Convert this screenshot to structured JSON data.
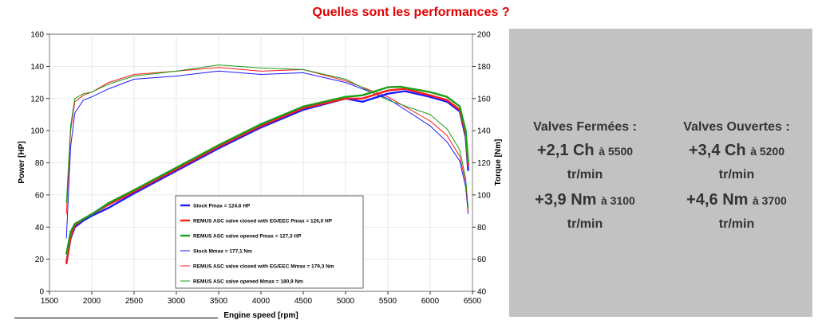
{
  "title": "Quelles sont les performances ?",
  "stats": {
    "closed": {
      "title": "Valves Fermées :",
      "power_gain": "+2,1 Ch",
      "power_at": "à 5500",
      "power_unit": "tr/min",
      "torque_gain": "+3,9 Nm",
      "torque_at": "à 3100",
      "torque_unit": "tr/min"
    },
    "open": {
      "title": "Valves Ouvertes :",
      "power_gain": "+3,4 Ch",
      "power_at": "à 5200",
      "power_unit": "tr/min",
      "torque_gain": "+4,6 Nm",
      "torque_at": "à 3700",
      "torque_unit": "tr/min"
    }
  },
  "colors": {
    "stock": "#1a1aff",
    "closed": "#ff1a1a",
    "open": "#1a9e1a",
    "title": "#e00000",
    "panel": "#c2c2c2"
  },
  "chart_data": {
    "type": "line",
    "xlabel": "Engine speed [rpm]",
    "ylabel": "Power [HP]",
    "y2label": "Torque [Nm]",
    "xlim": [
      1500,
      6500
    ],
    "ylim": [
      0,
      160
    ],
    "y2lim": [
      40,
      200
    ],
    "xticks": [
      1500,
      2000,
      2500,
      3000,
      3500,
      4000,
      4500,
      5000,
      5500,
      6000,
      6500
    ],
    "yticks": [
      0,
      20,
      40,
      60,
      80,
      100,
      120,
      140,
      160
    ],
    "y2ticks": [
      40,
      60,
      80,
      100,
      120,
      140,
      160,
      180,
      200
    ],
    "grid": true,
    "legend_position": "bottom-center",
    "series": [
      {
        "name": "Stock Pmax = 124,6 HP",
        "axis": "left",
        "color_key": "stock",
        "width": 2.4,
        "points": [
          [
            1700,
            18
          ],
          [
            1750,
            33
          ],
          [
            1800,
            40
          ],
          [
            1900,
            44
          ],
          [
            2000,
            47
          ],
          [
            2200,
            52
          ],
          [
            2500,
            61
          ],
          [
            3000,
            75
          ],
          [
            3500,
            89
          ],
          [
            4000,
            102
          ],
          [
            4500,
            113
          ],
          [
            5000,
            120
          ],
          [
            5200,
            118
          ],
          [
            5500,
            123
          ],
          [
            5700,
            124.6
          ],
          [
            6000,
            121
          ],
          [
            6200,
            118
          ],
          [
            6350,
            112
          ],
          [
            6420,
            96
          ],
          [
            6450,
            75
          ]
        ]
      },
      {
        "name": "REMUS ASC valve closed with EG/EEC Pmax =  126,0 HP",
        "axis": "left",
        "color_key": "closed",
        "width": 2.4,
        "points": [
          [
            1700,
            17
          ],
          [
            1750,
            34
          ],
          [
            1800,
            41
          ],
          [
            1900,
            45
          ],
          [
            2000,
            48
          ],
          [
            2200,
            54
          ],
          [
            2500,
            62
          ],
          [
            3000,
            76
          ],
          [
            3500,
            90
          ],
          [
            4000,
            103
          ],
          [
            4500,
            114
          ],
          [
            5000,
            120
          ],
          [
            5200,
            120
          ],
          [
            5500,
            125
          ],
          [
            5700,
            126
          ],
          [
            6000,
            122
          ],
          [
            6200,
            119
          ],
          [
            6350,
            113
          ],
          [
            6420,
            98
          ],
          [
            6450,
            78
          ]
        ]
      },
      {
        "name": "REMUS ASC valve opened Pmax = 127,3 HP",
        "axis": "left",
        "color_key": "open",
        "width": 2.4,
        "points": [
          [
            1700,
            23
          ],
          [
            1750,
            37
          ],
          [
            1800,
            42
          ],
          [
            1900,
            45
          ],
          [
            2000,
            48
          ],
          [
            2200,
            55
          ],
          [
            2500,
            63
          ],
          [
            3000,
            77
          ],
          [
            3500,
            91
          ],
          [
            4000,
            104
          ],
          [
            4500,
            115
          ],
          [
            5000,
            121
          ],
          [
            5200,
            122
          ],
          [
            5500,
            127
          ],
          [
            5650,
            127.3
          ],
          [
            6000,
            124
          ],
          [
            6200,
            121
          ],
          [
            6350,
            115
          ],
          [
            6420,
            100
          ],
          [
            6450,
            80
          ]
        ]
      },
      {
        "name": "Stock Mmax = 177,1 Nm",
        "axis": "right",
        "color_key": "stock",
        "width": 1,
        "points": [
          [
            1700,
            73
          ],
          [
            1750,
            130
          ],
          [
            1800,
            151
          ],
          [
            1900,
            159
          ],
          [
            2000,
            161
          ],
          [
            2200,
            166
          ],
          [
            2500,
            172
          ],
          [
            3000,
            174
          ],
          [
            3500,
            177.1
          ],
          [
            4000,
            175
          ],
          [
            4500,
            176
          ],
          [
            5000,
            170
          ],
          [
            5500,
            160
          ],
          [
            6000,
            143
          ],
          [
            6200,
            133
          ],
          [
            6350,
            121
          ],
          [
            6420,
            105
          ],
          [
            6450,
            88
          ]
        ]
      },
      {
        "name": "REMUS ASC valve closed with EG/EEC Mmax = 179,3 Nm",
        "axis": "right",
        "color_key": "closed",
        "width": 1,
        "points": [
          [
            1700,
            88
          ],
          [
            1750,
            140
          ],
          [
            1800,
            158
          ],
          [
            1900,
            162
          ],
          [
            2000,
            164
          ],
          [
            2200,
            170
          ],
          [
            2500,
            175
          ],
          [
            3000,
            177
          ],
          [
            3500,
            179.3
          ],
          [
            4000,
            177
          ],
          [
            4500,
            178
          ],
          [
            5000,
            171
          ],
          [
            5500,
            161
          ],
          [
            6000,
            146
          ],
          [
            6200,
            137
          ],
          [
            6350,
            124
          ],
          [
            6420,
            108
          ],
          [
            6450,
            90
          ]
        ]
      },
      {
        "name": "REMUS ASC valve opened Mmax = 180,9 Nm",
        "axis": "right",
        "color_key": "open",
        "width": 1,
        "points": [
          [
            1700,
            95
          ],
          [
            1750,
            143
          ],
          [
            1800,
            160
          ],
          [
            1900,
            163
          ],
          [
            2000,
            164
          ],
          [
            2200,
            169
          ],
          [
            2500,
            174
          ],
          [
            3000,
            177
          ],
          [
            3500,
            180.9
          ],
          [
            4000,
            179
          ],
          [
            4500,
            178
          ],
          [
            5000,
            172
          ],
          [
            5500,
            159
          ],
          [
            6000,
            150
          ],
          [
            6200,
            141
          ],
          [
            6350,
            128
          ],
          [
            6420,
            110
          ],
          [
            6450,
            92
          ]
        ]
      }
    ]
  }
}
